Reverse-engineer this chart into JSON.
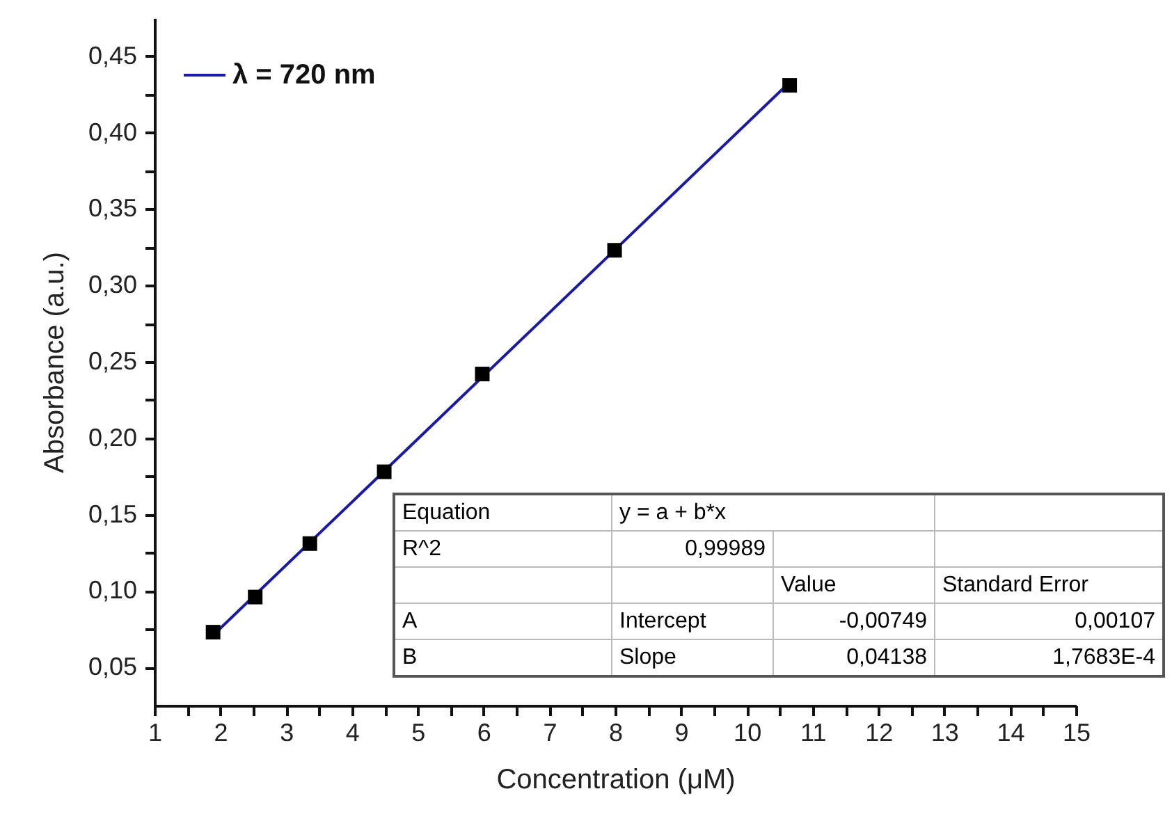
{
  "chart_data": {
    "type": "scatter",
    "xlabel": "Concentration (μM)",
    "ylabel": "Absorbance (a.u.)",
    "xlim": [
      1,
      15
    ],
    "ylim": [
      0.025,
      0.475
    ],
    "xticks": [
      1,
      {
        "value": 1.5,
        "label": null
      },
      2,
      {
        "value": 2.5,
        "label": null
      },
      3,
      {
        "value": 3.5,
        "label": null
      },
      4,
      {
        "value": 4.5,
        "label": null
      },
      5,
      {
        "value": 5.5,
        "label": null
      },
      6,
      {
        "value": 6.5,
        "label": null
      },
      7,
      {
        "value": 7.5,
        "label": null
      },
      8,
      {
        "value": 8.5,
        "label": null
      },
      9,
      {
        "value": 9.5,
        "label": null
      },
      10,
      {
        "value": 10.5,
        "label": null
      },
      11,
      {
        "value": 11.5,
        "label": null
      },
      12,
      {
        "value": 12.5,
        "label": null
      },
      13,
      {
        "value": 13.5,
        "label": null
      },
      14,
      {
        "value": 14.5,
        "label": null
      },
      15
    ],
    "yticks": [
      {
        "value": 0.05,
        "label": "0,05"
      },
      {
        "value": 0.075,
        "label": null
      },
      {
        "value": 0.1,
        "label": "0,10"
      },
      {
        "value": 0.125,
        "label": null
      },
      {
        "value": 0.15,
        "label": "0,15"
      },
      {
        "value": 0.175,
        "label": null
      },
      {
        "value": 0.2,
        "label": "0,20"
      },
      {
        "value": 0.225,
        "label": null
      },
      {
        "value": 0.25,
        "label": "0,25"
      },
      {
        "value": 0.275,
        "label": null
      },
      {
        "value": 0.3,
        "label": "0,30"
      },
      {
        "value": 0.325,
        "label": null
      },
      {
        "value": 0.35,
        "label": "0,35"
      },
      {
        "value": 0.375,
        "label": null
      },
      {
        "value": 0.4,
        "label": "0,40"
      },
      {
        "value": 0.425,
        "label": null
      },
      {
        "value": 0.45,
        "label": "0,45"
      }
    ],
    "legend": "top left",
    "series": [
      {
        "type": "line",
        "name": "λ = 720 nm",
        "color": "#1a1aa8",
        "x": [
          1.89,
          10.65
        ],
        "values": [
          0.071,
          0.433
        ]
      },
      {
        "type": "scatter",
        "marker": "square",
        "color": "#000000",
        "x": [
          1.89,
          2.53,
          3.36,
          4.49,
          5.98,
          7.99,
          10.65
        ],
        "values": [
          0.073,
          0.096,
          0.131,
          0.178,
          0.242,
          0.323,
          0.431
        ]
      }
    ],
    "annotations": [
      "Equation",
      "y = a + b*x",
      "R^2",
      "0,99989",
      "Value",
      "Standard Error",
      "A",
      "Intercept",
      "-0,00749",
      "0,00107",
      "B",
      "Slope",
      "0,04138",
      "1,7683E-4"
    ]
  }
}
